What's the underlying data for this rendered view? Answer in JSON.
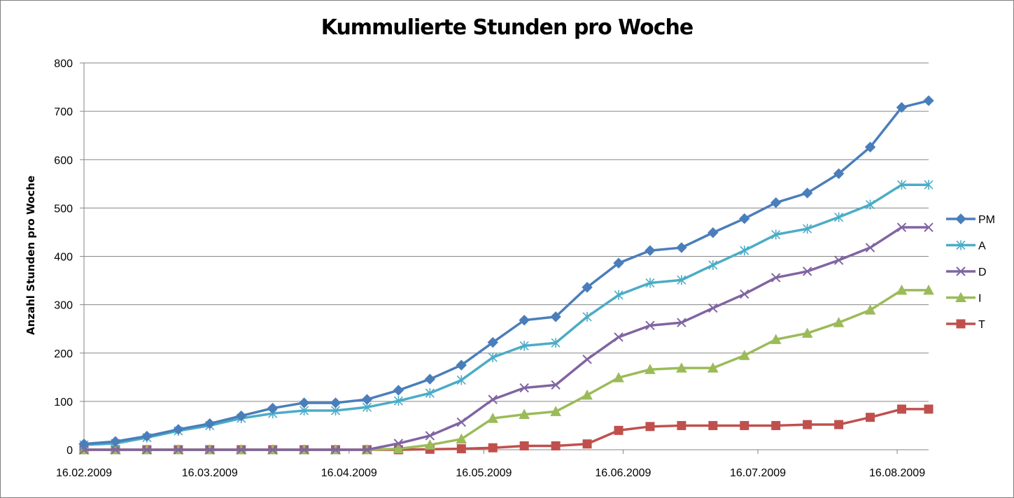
{
  "chart_data": {
    "type": "line",
    "title": "Kummulierte Stunden pro Woche",
    "xlabel": "",
    "ylabel": "Anzahl Stunden pro Woche",
    "ylim": [
      0,
      800
    ],
    "yticks": [
      0,
      100,
      200,
      300,
      400,
      500,
      600,
      700,
      800
    ],
    "xlim": [
      "16.02.2009",
      "23.08.2009"
    ],
    "xticks": [
      "16.02.2009",
      "16.03.2009",
      "16.04.2009",
      "16.05.2009",
      "16.06.2009",
      "16.07.2009",
      "16.08.2009"
    ],
    "grid": "horizontal",
    "legend_position": "right",
    "x": [
      "16.02.2009",
      "23.02.2009",
      "02.03.2009",
      "09.03.2009",
      "16.03.2009",
      "23.03.2009",
      "30.03.2009",
      "06.04.2009",
      "13.04.2009",
      "20.04.2009",
      "27.04.2009",
      "04.05.2009",
      "11.05.2009",
      "18.05.2009",
      "25.05.2009",
      "01.06.2009",
      "08.06.2009",
      "15.06.2009",
      "22.06.2009",
      "29.06.2009",
      "06.07.2009",
      "13.07.2009",
      "20.07.2009",
      "27.07.2009",
      "03.08.2009",
      "10.08.2009",
      "17.08.2009",
      "23.08.2009"
    ],
    "series": [
      {
        "name": "PM",
        "color": "#4a7ebb",
        "marker": "diamond",
        "values": [
          12,
          17,
          28,
          42,
          54,
          70,
          86,
          97,
          97,
          104,
          123,
          146,
          175,
          222,
          268,
          275,
          336,
          386,
          412,
          418,
          449,
          478,
          511,
          531,
          571,
          626,
          708,
          722
        ]
      },
      {
        "name": "A",
        "color": "#4bacc6",
        "marker": "star",
        "values": [
          10,
          13,
          25,
          39,
          50,
          65,
          75,
          81,
          81,
          88,
          101,
          117,
          144,
          191,
          215,
          221,
          275,
          320,
          345,
          351,
          382,
          412,
          445,
          457,
          481,
          507,
          548,
          548
        ]
      },
      {
        "name": "D",
        "color": "#8064a2",
        "marker": "x",
        "values": [
          0,
          0,
          0,
          0,
          0,
          0,
          0,
          0,
          0,
          0,
          13,
          29,
          57,
          104,
          128,
          134,
          187,
          233,
          257,
          263,
          293,
          322,
          356,
          369,
          392,
          418,
          460,
          460
        ]
      },
      {
        "name": "I",
        "color": "#9bbb59",
        "marker": "triangle",
        "values": [
          0,
          0,
          0,
          0,
          0,
          0,
          0,
          0,
          0,
          0,
          2,
          10,
          22,
          65,
          73,
          79,
          113,
          149,
          166,
          169,
          169,
          195,
          228,
          241,
          263,
          289,
          330,
          330
        ]
      },
      {
        "name": "T",
        "color": "#c0504d",
        "marker": "square",
        "values": [
          0,
          0,
          0,
          0,
          0,
          0,
          0,
          0,
          0,
          0,
          0,
          1,
          2,
          4,
          8,
          8,
          12,
          40,
          48,
          50,
          50,
          50,
          50,
          52,
          52,
          67,
          84,
          84
        ]
      }
    ]
  }
}
